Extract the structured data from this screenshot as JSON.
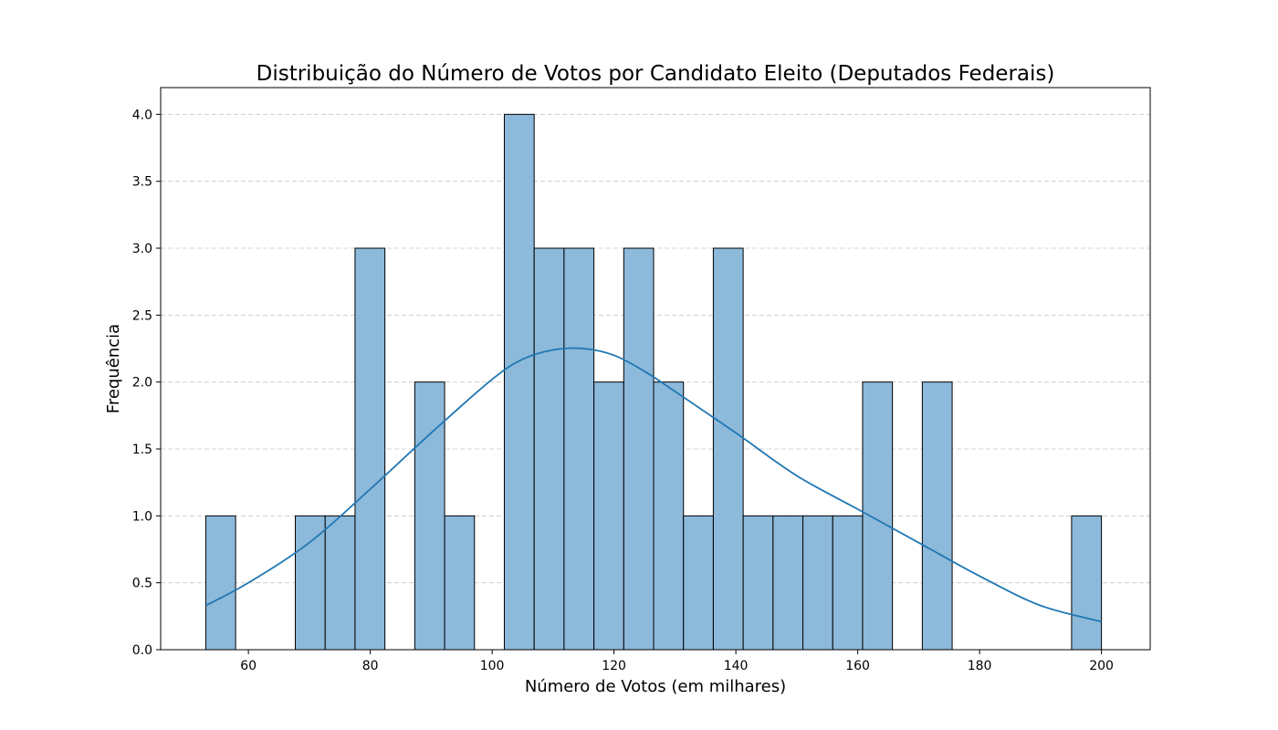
{
  "chart_data": {
    "type": "bar",
    "title": "Distribuição do Número de Votos por Candidato Eleito (Deputados Federais)",
    "xlabel": "Número de Votos (em milhares)",
    "ylabel": "Frequência",
    "xlim": [
      45.6,
      208
    ],
    "ylim": [
      0,
      4.2
    ],
    "grid": "y-dashed",
    "bar_color": "#8db9da",
    "bar_edge_color": "#000000",
    "kde_color": "#1f77b4",
    "x_ticks": [
      "60",
      "80",
      "100",
      "120",
      "140",
      "160",
      "180",
      "200"
    ],
    "y_ticks": [
      "0.0",
      "0.5",
      "1.0",
      "1.5",
      "2.0",
      "2.5",
      "3.0",
      "3.5",
      "4.0"
    ],
    "bins": {
      "start": 53.0,
      "width": 4.9,
      "counts": [
        1,
        0,
        0,
        1,
        1,
        3,
        0,
        2,
        1,
        0,
        4,
        3,
        3,
        2,
        3,
        2,
        1,
        3,
        1,
        1,
        1,
        1,
        2,
        0,
        2,
        0,
        0,
        0,
        0,
        1
      ]
    },
    "kde": {
      "x": [
        53,
        60,
        70,
        80,
        90,
        100,
        105,
        110,
        115,
        120,
        125,
        130,
        140,
        150,
        160,
        170,
        180,
        190,
        200
      ],
      "y": [
        0.33,
        0.5,
        0.8,
        1.2,
        1.62,
        2.02,
        2.17,
        2.24,
        2.25,
        2.2,
        2.08,
        1.93,
        1.62,
        1.3,
        1.05,
        0.8,
        0.55,
        0.33,
        0.21
      ]
    }
  }
}
